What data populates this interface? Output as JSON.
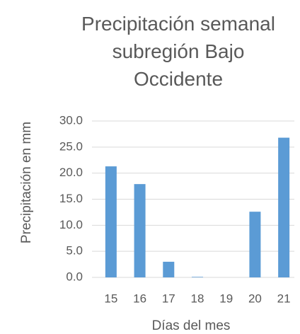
{
  "chart_data": {
    "type": "bar",
    "title": "Precipitación semanal subregión Bajo Occidente",
    "y_label": "Precipitación en mm",
    "x_label": "Días del mes",
    "categories": [
      "15",
      "16",
      "17",
      "18",
      "19",
      "20",
      "21"
    ],
    "values": [
      21.3,
      17.9,
      3.0,
      0.1,
      0,
      12.6,
      26.8
    ],
    "color": "#5b9bd5",
    "ylim": [
      0,
      30
    ],
    "yticks": [
      {
        "value": 0,
        "label": "0.0"
      },
      {
        "value": 5,
        "label": "5.0"
      },
      {
        "value": 10,
        "label": "10.0"
      },
      {
        "value": 15,
        "label": "15.0"
      },
      {
        "value": 20,
        "label": "20.0"
      },
      {
        "value": 25,
        "label": "25.0"
      },
      {
        "value": 30,
        "label": "30.0"
      }
    ],
    "grid": true
  }
}
